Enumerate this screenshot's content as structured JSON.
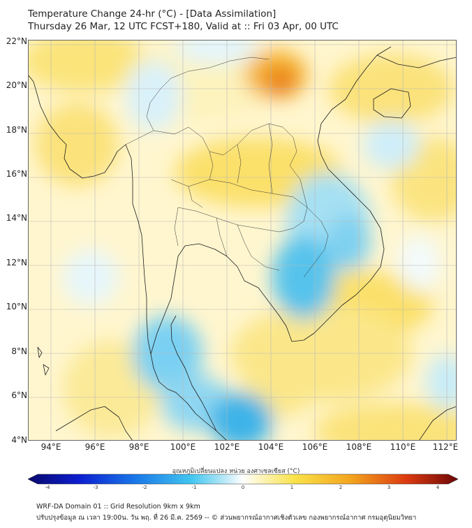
{
  "title": {
    "line1": "Temperature Change 24-hr (°C) - [Data Assimilation]",
    "line2": "Thursday 26 Mar, 12 UTC FCST+180, Valid at :: Fri 03 Apr, 00 UTC"
  },
  "map": {
    "lat_labels": [
      "22°N",
      "20°N",
      "18°N",
      "16°N",
      "14°N",
      "12°N",
      "10°N",
      "8°N",
      "6°N",
      "4°N"
    ],
    "lon_labels": [
      "94°E",
      "96°E",
      "98°E",
      "100°E",
      "102°E",
      "104°E",
      "106°E",
      "108°E",
      "110°E",
      "112°E"
    ],
    "lat_range": [
      4,
      22.2
    ],
    "lon_range": [
      93,
      112.5
    ],
    "colors": {
      "land_border": "#1a1a1a",
      "grid": "#b0b0b0",
      "warm": "#f7d21c",
      "hot": "#e0601a",
      "cool": "#7fd4ef",
      "cold": "#35b0e6",
      "neutral": "#fffbe8"
    }
  },
  "colorbar": {
    "title": "อุณหภูมิเปลี่ยนแปลง หน่วย องศาเซลเซียส (°C)",
    "ticks": [
      "-4",
      "-3",
      "-2",
      "-1",
      "0",
      "1",
      "2",
      "3",
      "4"
    ],
    "range": [
      -4,
      4
    ]
  },
  "footer": {
    "line1": "WRF-DA Domain 01 :: Grid Resolution 9km x 9km",
    "line2": "ปรับปรุงข้อมูล ณ เวลา 19:00น. วัน พฤ. ที่ 26 มี.ค. 2569 -- © ส่วนพยากรณ์อากาศเชิงตัวเลข กองพยากรณ์อากาศ กรมอุตุนิยมวิทยา"
  }
}
